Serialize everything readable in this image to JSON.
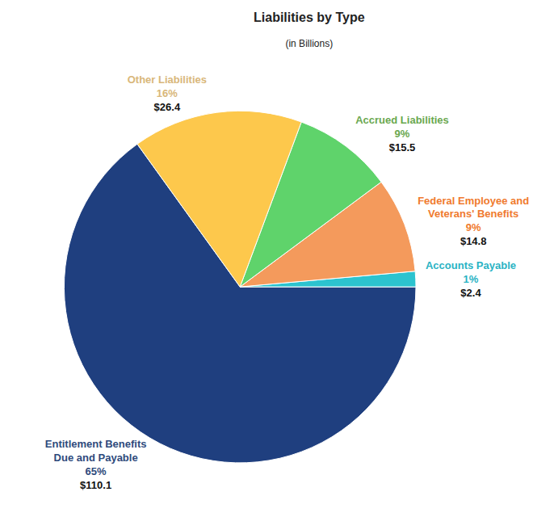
{
  "chart_data": {
    "type": "pie",
    "title": "Liabilities by Type",
    "subtitle": "(in Billions)",
    "categories": [
      "Entitlement Benefits Due and Payable",
      "Accounts Payable",
      "Federal Employee and Veterans' Benefits",
      "Accrued Liabilities",
      "Other Liabilities"
    ],
    "values": [
      110.1,
      2.4,
      14.8,
      15.5,
      26.4
    ],
    "value_labels": [
      "$110.1",
      "$2.4",
      "$14.8",
      "$15.5",
      "$26.4"
    ],
    "percents": [
      65,
      1,
      9,
      9,
      16
    ],
    "percent_labels": [
      "65%",
      "1%",
      "9%",
      "9%",
      "16%"
    ],
    "colors": [
      "#1f3f7f",
      "#2cc3cf",
      "#f49a5c",
      "#5fd36b",
      "#fdc84c"
    ],
    "data_labels": true
  }
}
